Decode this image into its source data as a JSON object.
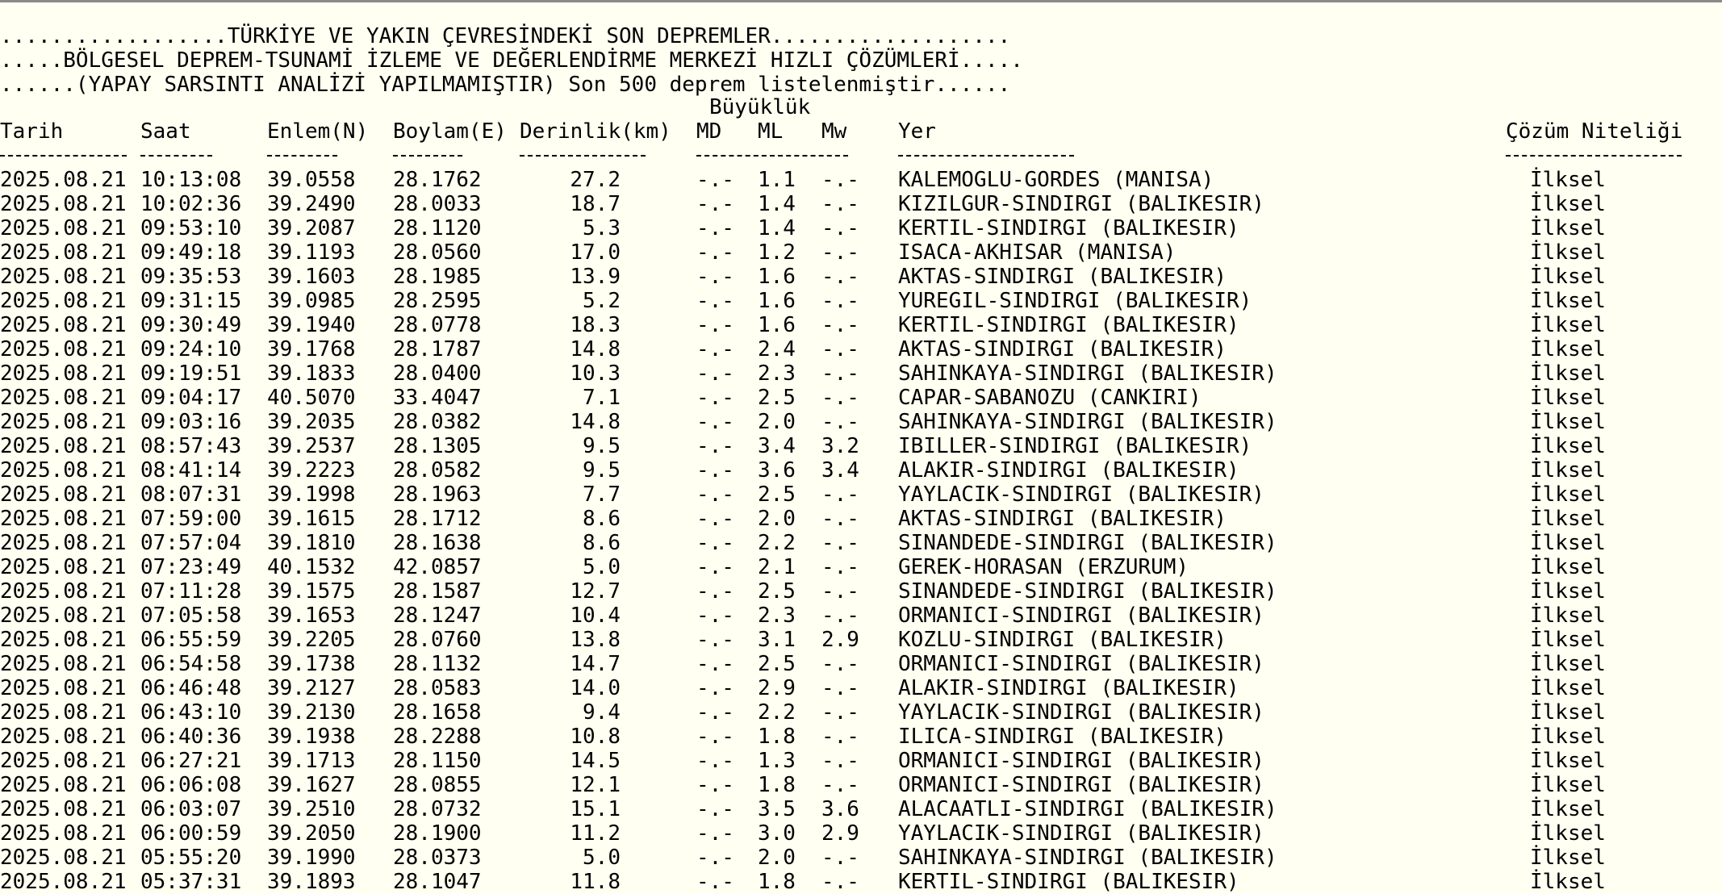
{
  "header": {
    "title_line1": "..................TÜRKİYE VE YAKIN ÇEVRESİNDEKİ SON DEPREMLER...................",
    "title_line2": ".....BÖLGESEL DEPREM-TSUNAMİ İZLEME VE DEĞERLENDİRME MERKEZİ HIZLI ÇÖZÜMLERİ.....",
    "title_line3": "......(YAPAY SARSINTI ANALİZİ YAPILMAMIŞTIR) Son 500 deprem listelenmiştir......"
  },
  "columns": {
    "magnitude_group": "Büyüklük",
    "date": "Tarih",
    "time": "Saat",
    "lat": "Enlem(N)",
    "lon": "Boylam(E)",
    "depth": "Derinlik(km)",
    "md": "MD",
    "ml": "ML",
    "mw": "Mw",
    "location": "Yer",
    "quality": "Çözüm Niteliği"
  },
  "rows": [
    [
      "2025.08.21",
      "10:13:08",
      "39.0558",
      "28.1762",
      "27.2",
      "-.-",
      "1.1",
      "-.-",
      "KALEMOGLU-GORDES (MANISA)",
      "İlksel"
    ],
    [
      "2025.08.21",
      "10:02:36",
      "39.2490",
      "28.0033",
      "18.7",
      "-.-",
      "1.4",
      "-.-",
      "KIZILGUR-SINDIRGI (BALIKESIR)",
      "İlksel"
    ],
    [
      "2025.08.21",
      "09:53:10",
      "39.2087",
      "28.1120",
      "5.3",
      "-.-",
      "1.4",
      "-.-",
      "KERTIL-SINDIRGI (BALIKESIR)",
      "İlksel"
    ],
    [
      "2025.08.21",
      "09:49:18",
      "39.1193",
      "28.0560",
      "17.0",
      "-.-",
      "1.2",
      "-.-",
      "ISACA-AKHISAR (MANISA)",
      "İlksel"
    ],
    [
      "2025.08.21",
      "09:35:53",
      "39.1603",
      "28.1985",
      "13.9",
      "-.-",
      "1.6",
      "-.-",
      "AKTAS-SINDIRGI (BALIKESIR)",
      "İlksel"
    ],
    [
      "2025.08.21",
      "09:31:15",
      "39.0985",
      "28.2595",
      "5.2",
      "-.-",
      "1.6",
      "-.-",
      "YUREGIL-SINDIRGI (BALIKESIR)",
      "İlksel"
    ],
    [
      "2025.08.21",
      "09:30:49",
      "39.1940",
      "28.0778",
      "18.3",
      "-.-",
      "1.6",
      "-.-",
      "KERTIL-SINDIRGI (BALIKESIR)",
      "İlksel"
    ],
    [
      "2025.08.21",
      "09:24:10",
      "39.1768",
      "28.1787",
      "14.8",
      "-.-",
      "2.4",
      "-.-",
      "AKTAS-SINDIRGI (BALIKESIR)",
      "İlksel"
    ],
    [
      "2025.08.21",
      "09:19:51",
      "39.1833",
      "28.0400",
      "10.3",
      "-.-",
      "2.3",
      "-.-",
      "SAHINKAYA-SINDIRGI (BALIKESIR)",
      "İlksel"
    ],
    [
      "2025.08.21",
      "09:04:17",
      "40.5070",
      "33.4047",
      "7.1",
      "-.-",
      "2.5",
      "-.-",
      "CAPAR-SABANOZU (CANKIRI)",
      "İlksel"
    ],
    [
      "2025.08.21",
      "09:03:16",
      "39.2035",
      "28.0382",
      "14.8",
      "-.-",
      "2.0",
      "-.-",
      "SAHINKAYA-SINDIRGI (BALIKESIR)",
      "İlksel"
    ],
    [
      "2025.08.21",
      "08:57:43",
      "39.2537",
      "28.1305",
      "9.5",
      "-.-",
      "3.4",
      "3.2",
      "IBILLER-SINDIRGI (BALIKESIR)",
      "İlksel"
    ],
    [
      "2025.08.21",
      "08:41:14",
      "39.2223",
      "28.0582",
      "9.5",
      "-.-",
      "3.6",
      "3.4",
      "ALAKIR-SINDIRGI (BALIKESIR)",
      "İlksel"
    ],
    [
      "2025.08.21",
      "08:07:31",
      "39.1998",
      "28.1963",
      "7.7",
      "-.-",
      "2.5",
      "-.-",
      "YAYLACIK-SINDIRGI (BALIKESIR)",
      "İlksel"
    ],
    [
      "2025.08.21",
      "07:59:00",
      "39.1615",
      "28.1712",
      "8.6",
      "-.-",
      "2.0",
      "-.-",
      "AKTAS-SINDIRGI (BALIKESIR)",
      "İlksel"
    ],
    [
      "2025.08.21",
      "07:57:04",
      "39.1810",
      "28.1638",
      "8.6",
      "-.-",
      "2.2",
      "-.-",
      "SINANDEDE-SINDIRGI (BALIKESIR)",
      "İlksel"
    ],
    [
      "2025.08.21",
      "07:23:49",
      "40.1532",
      "42.0857",
      "5.0",
      "-.-",
      "2.1",
      "-.-",
      "GEREK-HORASAN (ERZURUM)",
      "İlksel"
    ],
    [
      "2025.08.21",
      "07:11:28",
      "39.1575",
      "28.1587",
      "12.7",
      "-.-",
      "2.5",
      "-.-",
      "SINANDEDE-SINDIRGI (BALIKESIR)",
      "İlksel"
    ],
    [
      "2025.08.21",
      "07:05:58",
      "39.1653",
      "28.1247",
      "10.4",
      "-.-",
      "2.3",
      "-.-",
      "ORMANICI-SINDIRGI (BALIKESIR)",
      "İlksel"
    ],
    [
      "2025.08.21",
      "06:55:59",
      "39.2205",
      "28.0760",
      "13.8",
      "-.-",
      "3.1",
      "2.9",
      "KOZLU-SINDIRGI (BALIKESIR)",
      "İlksel"
    ],
    [
      "2025.08.21",
      "06:54:58",
      "39.1738",
      "28.1132",
      "14.7",
      "-.-",
      "2.5",
      "-.-",
      "ORMANICI-SINDIRGI (BALIKESIR)",
      "İlksel"
    ],
    [
      "2025.08.21",
      "06:46:48",
      "39.2127",
      "28.0583",
      "14.0",
      "-.-",
      "2.9",
      "-.-",
      "ALAKIR-SINDIRGI (BALIKESIR)",
      "İlksel"
    ],
    [
      "2025.08.21",
      "06:43:10",
      "39.2130",
      "28.1658",
      "9.4",
      "-.-",
      "2.2",
      "-.-",
      "YAYLACIK-SINDIRGI (BALIKESIR)",
      "İlksel"
    ],
    [
      "2025.08.21",
      "06:40:36",
      "39.1938",
      "28.2288",
      "10.8",
      "-.-",
      "1.8",
      "-.-",
      "ILICA-SINDIRGI (BALIKESIR)",
      "İlksel"
    ],
    [
      "2025.08.21",
      "06:27:21",
      "39.1713",
      "28.1150",
      "14.5",
      "-.-",
      "1.3",
      "-.-",
      "ORMANICI-SINDIRGI (BALIKESIR)",
      "İlksel"
    ],
    [
      "2025.08.21",
      "06:06:08",
      "39.1627",
      "28.0855",
      "12.1",
      "-.-",
      "1.8",
      "-.-",
      "ORMANICI-SINDIRGI (BALIKESIR)",
      "İlksel"
    ],
    [
      "2025.08.21",
      "06:03:07",
      "39.2510",
      "28.0732",
      "15.1",
      "-.-",
      "3.5",
      "3.6",
      "ALACAATLI-SINDIRGI (BALIKESIR)",
      "İlksel"
    ],
    [
      "2025.08.21",
      "06:00:59",
      "39.2050",
      "28.1900",
      "11.2",
      "-.-",
      "3.0",
      "2.9",
      "YAYLACIK-SINDIRGI (BALIKESIR)",
      "İlksel"
    ],
    [
      "2025.08.21",
      "05:55:20",
      "39.1990",
      "28.0373",
      "5.0",
      "-.-",
      "2.0",
      "-.-",
      "SAHINKAYA-SINDIRGI (BALIKESIR)",
      "İlksel"
    ],
    [
      "2025.08.21",
      "05:37:31",
      "39.1893",
      "28.1047",
      "11.8",
      "-.-",
      "1.8",
      "-.-",
      "KERTIL-SINDIRGI (BALIKESIR)",
      "İlksel"
    ]
  ]
}
